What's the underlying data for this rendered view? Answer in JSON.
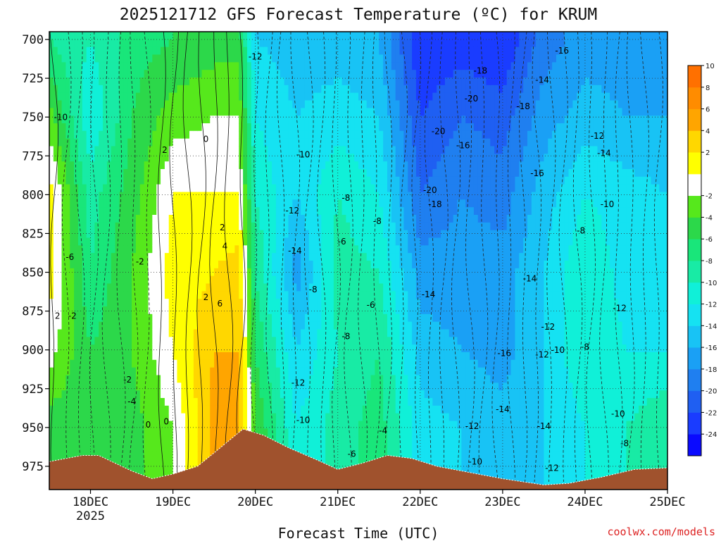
{
  "title": "2025121712 GFS Forecast Temperature (ºC) for KRUM",
  "xlabel": "Forecast Time (UTC)",
  "credit": "coolwx.com/models",
  "year_label": "2025",
  "chart_data": {
    "type": "heatmap",
    "title": "2025121712 GFS Forecast Temperature (ºC) for KRUM",
    "xlabel": "Forecast Time (UTC)",
    "ylabel": "",
    "y_scale": "pressure (hPa), inverted",
    "ylim": [
      990,
      695
    ],
    "y_ticks": [
      700,
      725,
      750,
      775,
      800,
      825,
      850,
      875,
      900,
      925,
      950,
      975
    ],
    "x_ticks": [
      "18DEC",
      "19DEC",
      "20DEC",
      "21DEC",
      "22DEC",
      "23DEC",
      "24DEC",
      "25DEC"
    ],
    "x_range_days": [
      17.5,
      25.0
    ],
    "colorbar": {
      "levels": [
        -24,
        -22,
        -20,
        -18,
        -16,
        -14,
        -12,
        -10,
        -8,
        -6,
        -4,
        -2,
        0,
        2,
        4,
        6,
        8,
        10
      ],
      "tick_labels": [
        "-24",
        "-22",
        "-20",
        "-18",
        "-16",
        "-14",
        "-12",
        "-10",
        "-8",
        "-6",
        "-4",
        "-2",
        "2",
        "4",
        "6",
        "8",
        "10"
      ],
      "colors": [
        "#0a0aff",
        "#1a3cff",
        "#1f5ff2",
        "#1f7ff0",
        "#1aa0f5",
        "#18c3f5",
        "#15e2f2",
        "#10f0d8",
        "#18eba5",
        "#19e67a",
        "#2cd84a",
        "#56e81c",
        "#ffffff",
        "#ffff00",
        "#ffd700",
        "#ffa500",
        "#ff8c00",
        "#ff7000"
      ]
    },
    "series": [
      {
        "x": 17.5,
        "profile": [
          {
            "p": 700,
            "t": -6
          },
          {
            "p": 750,
            "t": -1
          },
          {
            "p": 800,
            "t": 3
          },
          {
            "p": 850,
            "t": 3
          },
          {
            "p": 900,
            "t": 1
          },
          {
            "p": 950,
            "t": -3
          }
        ]
      },
      {
        "x": 18.0,
        "profile": [
          {
            "p": 700,
            "t": -8
          },
          {
            "p": 750,
            "t": -10
          },
          {
            "p": 800,
            "t": -7
          },
          {
            "p": 850,
            "t": -6
          },
          {
            "p": 900,
            "t": -4
          },
          {
            "p": 950,
            "t": -4
          }
        ]
      },
      {
        "x": 18.5,
        "profile": [
          {
            "p": 700,
            "t": -5
          },
          {
            "p": 750,
            "t": -4
          },
          {
            "p": 800,
            "t": -3
          },
          {
            "p": 850,
            "t": -2
          },
          {
            "p": 900,
            "t": -2
          },
          {
            "p": 950,
            "t": -3
          }
        ]
      },
      {
        "x": 19.0,
        "profile": [
          {
            "p": 700,
            "t": -4
          },
          {
            "p": 750,
            "t": -1
          },
          {
            "p": 800,
            "t": 2
          },
          {
            "p": 850,
            "t": 3
          },
          {
            "p": 900,
            "t": 2
          },
          {
            "p": 950,
            "t": 0
          }
        ]
      },
      {
        "x": 19.5,
        "profile": [
          {
            "p": 700,
            "t": -3
          },
          {
            "p": 750,
            "t": 0
          },
          {
            "p": 800,
            "t": 2
          },
          {
            "p": 850,
            "t": 4
          },
          {
            "p": 900,
            "t": 6
          },
          {
            "p": 950,
            "t": 7
          }
        ]
      },
      {
        "x": 19.8,
        "profile": [
          {
            "p": 700,
            "t": -3
          },
          {
            "p": 750,
            "t": 0
          },
          {
            "p": 800,
            "t": 2
          },
          {
            "p": 850,
            "t": 5
          },
          {
            "p": 900,
            "t": 6
          },
          {
            "p": 950,
            "t": 6
          }
        ]
      },
      {
        "x": 20.0,
        "profile": [
          {
            "p": 700,
            "t": -12
          },
          {
            "p": 750,
            "t": -10
          },
          {
            "p": 800,
            "t": -8
          },
          {
            "p": 850,
            "t": -6
          },
          {
            "p": 900,
            "t": -4
          },
          {
            "p": 950,
            "t": -2
          }
        ]
      },
      {
        "x": 20.5,
        "profile": [
          {
            "p": 700,
            "t": -13
          },
          {
            "p": 750,
            "t": -12
          },
          {
            "p": 800,
            "t": -12
          },
          {
            "p": 850,
            "t": -15
          },
          {
            "p": 900,
            "t": -12
          },
          {
            "p": 950,
            "t": -10
          }
        ]
      },
      {
        "x": 21.0,
        "profile": [
          {
            "p": 700,
            "t": -13
          },
          {
            "p": 750,
            "t": -11
          },
          {
            "p": 800,
            "t": -8
          },
          {
            "p": 850,
            "t": -7
          },
          {
            "p": 900,
            "t": -8
          },
          {
            "p": 950,
            "t": -7
          }
        ]
      },
      {
        "x": 21.5,
        "profile": [
          {
            "p": 700,
            "t": -14
          },
          {
            "p": 750,
            "t": -12
          },
          {
            "p": 800,
            "t": -10
          },
          {
            "p": 850,
            "t": -8
          },
          {
            "p": 900,
            "t": -6
          },
          {
            "p": 950,
            "t": -5
          }
        ]
      },
      {
        "x": 22.0,
        "profile": [
          {
            "p": 700,
            "t": -22
          },
          {
            "p": 750,
            "t": -20
          },
          {
            "p": 800,
            "t": -18
          },
          {
            "p": 850,
            "t": -15
          },
          {
            "p": 900,
            "t": -13
          },
          {
            "p": 950,
            "t": -11
          }
        ]
      },
      {
        "x": 22.5,
        "profile": [
          {
            "p": 700,
            "t": -21
          },
          {
            "p": 750,
            "t": -18
          },
          {
            "p": 800,
            "t": -16
          },
          {
            "p": 850,
            "t": -15
          },
          {
            "p": 900,
            "t": -14
          },
          {
            "p": 950,
            "t": -12
          }
        ]
      },
      {
        "x": 23.0,
        "profile": [
          {
            "p": 700,
            "t": -22
          },
          {
            "p": 750,
            "t": -19
          },
          {
            "p": 800,
            "t": -17
          },
          {
            "p": 850,
            "t": -15
          },
          {
            "p": 900,
            "t": -15
          },
          {
            "p": 950,
            "t": -13
          }
        ]
      },
      {
        "x": 23.5,
        "profile": [
          {
            "p": 700,
            "t": -17
          },
          {
            "p": 750,
            "t": -15
          },
          {
            "p": 800,
            "t": -13
          },
          {
            "p": 850,
            "t": -12
          },
          {
            "p": 900,
            "t": -12
          },
          {
            "p": 950,
            "t": -12
          }
        ]
      },
      {
        "x": 24.0,
        "profile": [
          {
            "p": 700,
            "t": -15
          },
          {
            "p": 750,
            "t": -13
          },
          {
            "p": 800,
            "t": -10
          },
          {
            "p": 850,
            "t": -8
          },
          {
            "p": 900,
            "t": -8
          },
          {
            "p": 950,
            "t": -10
          }
        ]
      },
      {
        "x": 24.5,
        "profile": [
          {
            "p": 700,
            "t": -15
          },
          {
            "p": 750,
            "t": -14
          },
          {
            "p": 800,
            "t": -11
          },
          {
            "p": 850,
            "t": -11
          },
          {
            "p": 900,
            "t": -10
          },
          {
            "p": 950,
            "t": -8
          }
        ]
      },
      {
        "x": 25.0,
        "profile": [
          {
            "p": 700,
            "t": -16
          },
          {
            "p": 750,
            "t": -14
          },
          {
            "p": 800,
            "t": -12
          },
          {
            "p": 850,
            "t": -12
          },
          {
            "p": 900,
            "t": -10
          },
          {
            "p": 950,
            "t": -6
          }
        ]
      }
    ],
    "surface_pressure": [
      {
        "x": 17.5,
        "p": 972
      },
      {
        "x": 17.9,
        "p": 968
      },
      {
        "x": 18.1,
        "p": 968
      },
      {
        "x": 18.5,
        "p": 978
      },
      {
        "x": 18.75,
        "p": 983
      },
      {
        "x": 19.0,
        "p": 980
      },
      {
        "x": 19.3,
        "p": 975
      },
      {
        "x": 19.6,
        "p": 962
      },
      {
        "x": 19.85,
        "p": 951
      },
      {
        "x": 20.1,
        "p": 955
      },
      {
        "x": 20.4,
        "p": 963
      },
      {
        "x": 20.75,
        "p": 971
      },
      {
        "x": 21.0,
        "p": 977
      },
      {
        "x": 21.3,
        "p": 973
      },
      {
        "x": 21.6,
        "p": 968
      },
      {
        "x": 21.9,
        "p": 970
      },
      {
        "x": 22.2,
        "p": 975
      },
      {
        "x": 22.6,
        "p": 979
      },
      {
        "x": 23.0,
        "p": 983
      },
      {
        "x": 23.5,
        "p": 987
      },
      {
        "x": 23.8,
        "p": 986
      },
      {
        "x": 24.2,
        "p": 982
      },
      {
        "x": 24.6,
        "p": 977
      },
      {
        "x": 25.0,
        "p": 976
      }
    ],
    "contour_labels": [
      {
        "x": 17.64,
        "p": 752,
        "text": "-10"
      },
      {
        "x": 17.75,
        "p": 842,
        "text": "-6"
      },
      {
        "x": 17.6,
        "p": 880,
        "text": "2"
      },
      {
        "x": 17.78,
        "p": 880,
        "text": "-2"
      },
      {
        "x": 18.45,
        "p": 921,
        "text": "-2"
      },
      {
        "x": 18.5,
        "p": 935,
        "text": "-4"
      },
      {
        "x": 18.6,
        "p": 845,
        "text": "-2"
      },
      {
        "x": 18.7,
        "p": 950,
        "text": "0"
      },
      {
        "x": 18.92,
        "p": 948,
        "text": "0"
      },
      {
        "x": 18.9,
        "p": 773,
        "text": "2"
      },
      {
        "x": 19.4,
        "p": 766,
        "text": "0"
      },
      {
        "x": 19.4,
        "p": 868,
        "text": "2"
      },
      {
        "x": 19.6,
        "p": 823,
        "text": "2"
      },
      {
        "x": 19.63,
        "p": 835,
        "text": "4"
      },
      {
        "x": 19.57,
        "p": 872,
        "text": "6"
      },
      {
        "x": 20.0,
        "p": 713,
        "text": "-12"
      },
      {
        "x": 20.45,
        "p": 812,
        "text": "-12"
      },
      {
        "x": 20.48,
        "p": 838,
        "text": "-14"
      },
      {
        "x": 20.58,
        "p": 776,
        "text": "-10"
      },
      {
        "x": 20.7,
        "p": 863,
        "text": "-8"
      },
      {
        "x": 20.52,
        "p": 923,
        "text": "-12"
      },
      {
        "x": 20.58,
        "p": 947,
        "text": "-10"
      },
      {
        "x": 21.1,
        "p": 804,
        "text": "-8"
      },
      {
        "x": 21.05,
        "p": 832,
        "text": "-6"
      },
      {
        "x": 21.1,
        "p": 893,
        "text": "-8"
      },
      {
        "x": 21.48,
        "p": 819,
        "text": "-8"
      },
      {
        "x": 21.4,
        "p": 873,
        "text": "-6"
      },
      {
        "x": 21.17,
        "p": 969,
        "text": "-6"
      },
      {
        "x": 21.55,
        "p": 954,
        "text": "-4"
      },
      {
        "x": 22.12,
        "p": 799,
        "text": "-20"
      },
      {
        "x": 22.22,
        "p": 761,
        "text": "-20"
      },
      {
        "x": 22.18,
        "p": 808,
        "text": "-18"
      },
      {
        "x": 22.73,
        "p": 722,
        "text": "-18"
      },
      {
        "x": 22.62,
        "p": 740,
        "text": "-20"
      },
      {
        "x": 22.52,
        "p": 770,
        "text": "-16"
      },
      {
        "x": 22.1,
        "p": 866,
        "text": "-14"
      },
      {
        "x": 22.63,
        "p": 951,
        "text": "-12"
      },
      {
        "x": 22.67,
        "p": 974,
        "text": "-10"
      },
      {
        "x": 23.25,
        "p": 745,
        "text": "-18"
      },
      {
        "x": 23.48,
        "p": 728,
        "text": "-14"
      },
      {
        "x": 23.02,
        "p": 904,
        "text": "-16"
      },
      {
        "x": 23.0,
        "p": 940,
        "text": "-14"
      },
      {
        "x": 23.33,
        "p": 856,
        "text": "-14"
      },
      {
        "x": 23.42,
        "p": 788,
        "text": "-16"
      },
      {
        "x": 23.72,
        "p": 709,
        "text": "-16"
      },
      {
        "x": 23.55,
        "p": 887,
        "text": "-12"
      },
      {
        "x": 23.48,
        "p": 905,
        "text": "-12"
      },
      {
        "x": 23.67,
        "p": 902,
        "text": "-10"
      },
      {
        "x": 23.5,
        "p": 951,
        "text": "-14"
      },
      {
        "x": 23.6,
        "p": 978,
        "text": "-12"
      },
      {
        "x": 24.15,
        "p": 764,
        "text": "-12"
      },
      {
        "x": 24.23,
        "p": 775,
        "text": "-14"
      },
      {
        "x": 24.27,
        "p": 808,
        "text": "-10"
      },
      {
        "x": 23.95,
        "p": 825,
        "text": "-8"
      },
      {
        "x": 24.0,
        "p": 900,
        "text": "-8"
      },
      {
        "x": 24.42,
        "p": 875,
        "text": "-12"
      },
      {
        "x": 24.4,
        "p": 943,
        "text": "-10"
      },
      {
        "x": 24.48,
        "p": 962,
        "text": "-8"
      }
    ]
  }
}
